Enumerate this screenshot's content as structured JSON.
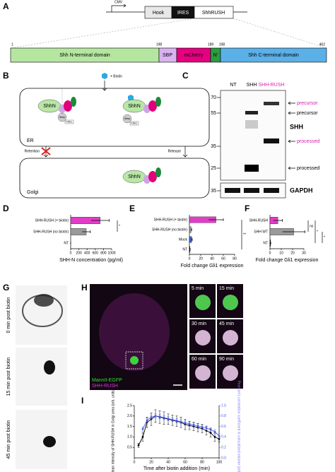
{
  "panel_labels": [
    "A",
    "B",
    "C",
    "D",
    "E",
    "F",
    "G",
    "H",
    "I"
  ],
  "construct": {
    "promoter": "CMV",
    "elements": [
      "Hook",
      "IRES",
      "ShhRUSH"
    ]
  },
  "domains": {
    "positions": [
      1,
      198,
      189,
      198,
      462
    ],
    "labels": [
      "Shh N-terminal domain",
      "SBP",
      "mCherry",
      "N'",
      "Shh C-terminal domain"
    ]
  },
  "diagram": {
    "biotin": "+ Biotin",
    "compartments": [
      "ER",
      "Golgi"
    ],
    "steps": [
      "Retention",
      "Release"
    ],
    "protein": "ShhN",
    "hook": "Strep",
    "anchor": "KDEL"
  },
  "blot": {
    "lanes": [
      "NT",
      "SHH",
      "SHH-RUSH"
    ],
    "lane_colors": [
      "#000000",
      "#000000",
      "#d21fb4"
    ],
    "markers": [
      70,
      55,
      35,
      25,
      35
    ],
    "bands": [
      "precursor",
      "precursor",
      "processed",
      "processed"
    ],
    "band_colors": [
      "#d21fb4",
      "#000000",
      "#d21fb4",
      "#000000"
    ],
    "target": "SHH",
    "loading_control": "GAPDH"
  },
  "chart_data": [
    {
      "type": "bar",
      "orientation": "horizontal",
      "categories": [
        "SHH-RUSH (+ biotin)",
        "SHH-RUSH (no biotin)",
        "NT"
      ],
      "values": [
        720,
        380,
        0
      ],
      "errors": [
        220,
        100,
        0
      ],
      "colors": [
        "#e23cc8",
        "#9a9a9a",
        "#000000"
      ],
      "xlim": [
        0,
        1000
      ],
      "xticks": [
        0,
        200,
        400,
        600,
        800,
        1000
      ],
      "xlabel": "SHH-N concentration (pg/ml)",
      "annotations": [
        "*"
      ]
    },
    {
      "type": "bar",
      "orientation": "horizontal",
      "categories": [
        "SHH-RUSH (+ biotin)",
        "SHH-RUSH (no biotin)",
        "Mock",
        "NT"
      ],
      "values": [
        47,
        3,
        4,
        1
      ],
      "errors": [
        13,
        1,
        1,
        0.3
      ],
      "colors": [
        "#e23cc8",
        "#9a9a9a",
        "#3b5bd6",
        "#000000"
      ],
      "xlim": [
        0,
        80
      ],
      "xticks": [
        0,
        20,
        40,
        60,
        80
      ],
      "xlabel": "Fold change Gli1 expression",
      "annotations": [
        "**"
      ]
    },
    {
      "type": "bar",
      "orientation": "horizontal",
      "categories": [
        "SHH-RUSH",
        "SHH WT",
        "NT"
      ],
      "values": [
        7,
        21,
        0.5
      ],
      "errors": [
        4,
        10,
        0.2
      ],
      "colors": [
        "#e23cc8",
        "#9a9a9a",
        "#000000"
      ],
      "xlim": [
        0,
        30
      ],
      "xticks": [
        0,
        10,
        20,
        30
      ],
      "xlabel": "Fold change Gli1 expression",
      "annotations": [
        "ns",
        "*",
        "*"
      ]
    },
    {
      "type": "line",
      "x": [
        5,
        10,
        15,
        20,
        25,
        30,
        35,
        40,
        45,
        50,
        55,
        60,
        65,
        70,
        75,
        80,
        85,
        90,
        95,
        100
      ],
      "xlim": [
        0,
        100
      ],
      "xticks": [
        0,
        20,
        40,
        60,
        80,
        100
      ],
      "ylim": [
        0,
        2.5
      ],
      "yticks": [
        0.5,
        {
          "value": 1,
          "label": "1.0"
        },
        1.5,
        {
          "value": 2,
          "label": "2.0"
        },
        2.5
      ],
      "y2lim": [
        0,
        1
      ],
      "y2ticks": [
        {
          "value": 0,
          "label": "0.0"
        },
        0.2,
        0.4,
        0.6,
        0.8,
        {
          "value": 1,
          "label": "1.0"
        }
      ],
      "xlabel": "Time after biotin addition (min)",
      "ylabel": "Mean intensity of SHH-RUSH in Golgi area (arb. units)",
      "y2label": "Pearson's correlation coefficient in colocalized volume (arb. units)",
      "series": [
        {
          "color": "#000000",
          "values": [
            0.6,
            1.0,
            1.7,
            1.85,
            2.0,
            1.95,
            1.9,
            1.85,
            1.8,
            1.75,
            1.7,
            1.6,
            1.55,
            1.5,
            1.45,
            1.4,
            1.3,
            1.2,
            1.0,
            0.9
          ],
          "errors": [
            0.1,
            0.2,
            0.25,
            0.3,
            0.3,
            0.3,
            0.3,
            0.25,
            0.25,
            0.25,
            0.25,
            0.25,
            0.2,
            0.2,
            0.2,
            0.2,
            0.2,
            0.2,
            0.2,
            0.15
          ]
        },
        {
          "color": "#4a5cf0",
          "axis": "y2",
          "values": [
            null,
            0.55,
            0.72,
            0.78,
            0.8,
            0.79,
            0.77,
            0.75,
            0.73,
            0.71,
            0.69,
            0.67,
            0.65,
            0.63,
            0.61,
            0.59,
            0.57,
            0.54,
            0.5,
            0.42
          ],
          "errors": [
            null,
            0.04,
            0.04,
            0.04,
            0.04,
            0.04,
            0.04,
            0.04,
            0.04,
            0.04,
            0.04,
            0.04,
            0.04,
            0.04,
            0.04,
            0.04,
            0.04,
            0.04,
            0.04,
            0.04
          ]
        }
      ]
    }
  ],
  "microscopy": {
    "timepoints": [
      "0 min post biotin",
      "15 min post biotin",
      "45 min post biotin"
    ],
    "channels": [
      {
        "name": "MannII-EGFP",
        "color": "#33dd33"
      },
      {
        "name": "SHH-RUSH",
        "color": "#dd33dd"
      }
    ],
    "insets": [
      "5 min",
      "15 min",
      "30 min",
      "45 min",
      "60 min",
      "90 min"
    ]
  }
}
